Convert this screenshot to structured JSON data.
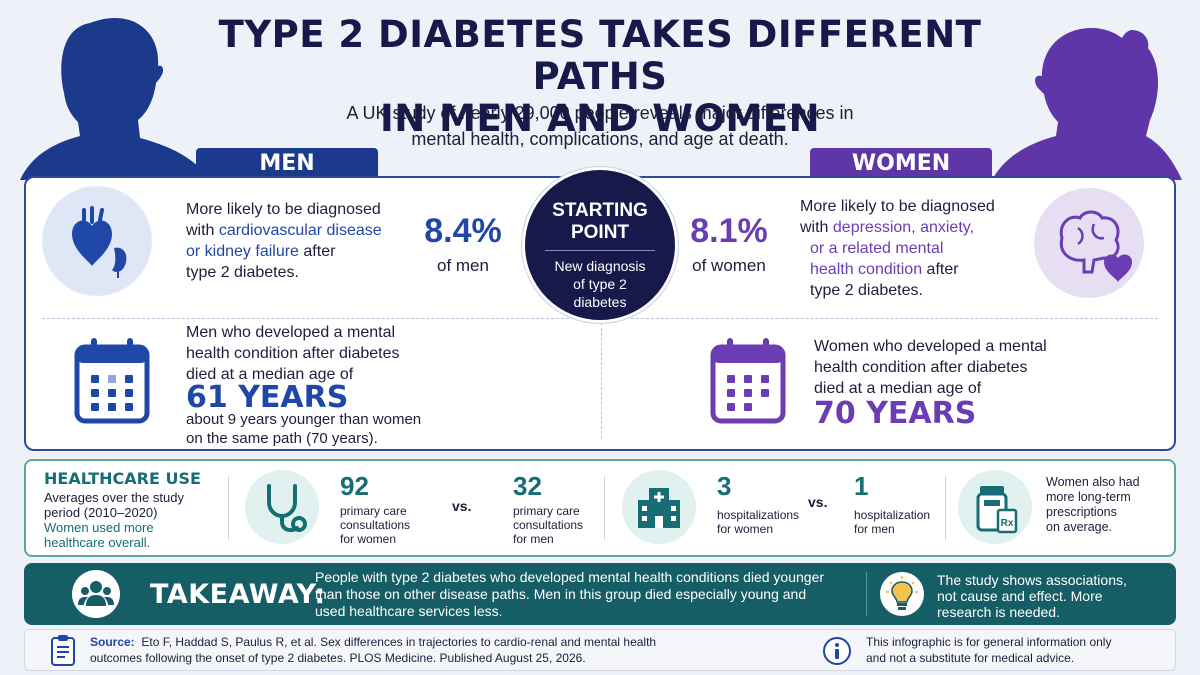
{
  "header": {
    "title_line1": "TYPE 2 DIABETES TAKES DIFFERENT PATHS",
    "title_line2": "IN MEN AND WOMEN",
    "subtitle_line1": "A UK study of nearly 29,000 people reveals major differences in",
    "subtitle_line2": "mental health, complications, and age at death."
  },
  "men": {
    "tag": "MEN",
    "diag_pre": "More likely to be diagnosed",
    "diag_with": "with ",
    "diag_highlight1": "cardiovascular disease",
    "diag_highlight2": "or kidney failure",
    "diag_after": " after",
    "diag_end": "type 2 diabetes.",
    "pct": "8.4%",
    "pct_label": "of men",
    "death_line1": "Men who developed a mental",
    "death_line2": "health condition after diabetes",
    "death_line3": "died at a median age of",
    "death_age": "61 YEARS",
    "death_note1": "about 9 years younger than women",
    "death_note2": "on the same path (70 years)."
  },
  "start": {
    "title_line1": "STARTING",
    "title_line2": "POINT",
    "desc_line1": "New diagnosis",
    "desc_line2": "of type 2",
    "desc_line3": "diabetes"
  },
  "women": {
    "tag": "WOMEN",
    "pct": "8.1%",
    "pct_label": "of women",
    "diag_pre": "More likely to be diagnosed",
    "diag_with": "with ",
    "diag_highlight1": "depression, anxiety,",
    "diag_highlight2": "or a related mental",
    "diag_highlight3": "health condition",
    "diag_after": " after",
    "diag_end": "type 2 diabetes.",
    "death_line1": "Women who developed a mental",
    "death_line2": "health condition after diabetes",
    "death_line3": "died at a median age of",
    "death_age": "70 YEARS"
  },
  "healthcare": {
    "title": "HEALTHCARE USE",
    "desc_line1": "Averages over the study",
    "desc_line2": "period (2010–2020)",
    "highlight_line1": "Women used more",
    "highlight_line2": "healthcare overall.",
    "primary_women_num": "92",
    "primary_women_l1": "primary care",
    "primary_women_l2": "consultations",
    "primary_women_l3": "for women",
    "vs": "vs.",
    "primary_men_num": "32",
    "primary_men_l1": "primary care",
    "primary_men_l2": "consultations",
    "primary_men_l3": "for men",
    "hosp_women_num": "3",
    "hosp_women_l1": "hospitalizations",
    "hosp_women_l2": "for women",
    "hosp_men_num": "1",
    "hosp_men_l1": "hospitalization",
    "hosp_men_l2": "for men",
    "rx_l1": "Women also had",
    "rx_l2": "more long-term",
    "rx_l3": "prescriptions",
    "rx_l4": "on average."
  },
  "takeaway": {
    "title": "TAKEAWAY:",
    "text_line1": "People with type 2 diabetes who developed mental health conditions died younger",
    "text_line2": "than those on other disease paths. Men in this group died especially young and",
    "text_line3": "used healthcare services less.",
    "note_line1": "The study shows associations,",
    "note_line2": "not cause and effect. More",
    "note_line3": "research is needed."
  },
  "footer": {
    "source_label": "Source:",
    "source_line1": "Eto F, Haddad S, Paulus R, et al. Sex differences in trajectories to cardio-renal and mental health",
    "source_line2": "outcomes following the onset of type 2 diabetes. PLOS Medicine. Published August 25, 2026.",
    "disclaimer_line1": "This infographic is for general information only",
    "disclaimer_line2": "and not a substitute for medical advice."
  },
  "icons": {
    "men_silhouette": "man-silhouette-icon",
    "women_silhouette": "woman-silhouette-icon",
    "heart_kidney": "heart-kidney-icon",
    "brain_heart": "brain-heart-icon",
    "calendar": "calendar-icon",
    "stethoscope": "stethoscope-icon",
    "hospital": "hospital-icon",
    "prescription": "prescription-icon",
    "people": "people-icon",
    "lightbulb": "lightbulb-icon",
    "clipboard": "clipboard-icon",
    "info": "info-icon"
  },
  "colors": {
    "men_accent": "#1b3a8c",
    "women_accent": "#5e36a8",
    "navy": "#16194a",
    "teal": "#176d74",
    "takeaway_bg": "#155e66"
  }
}
